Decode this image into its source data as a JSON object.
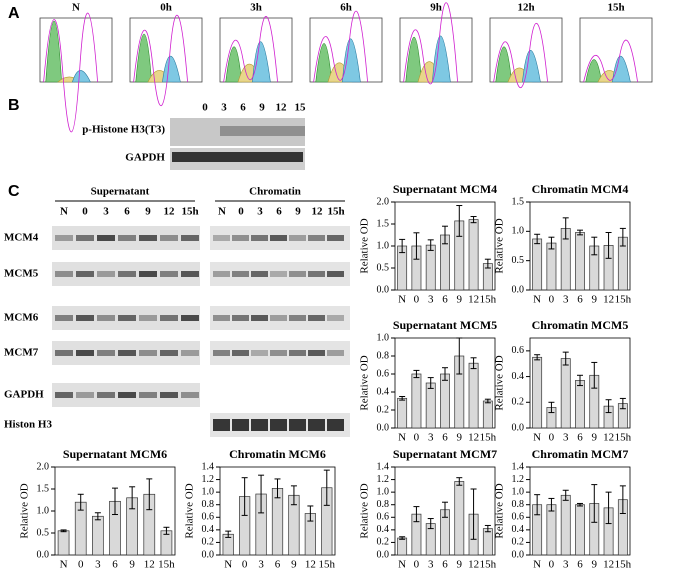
{
  "panel_a": {
    "label": "A",
    "times": [
      "N",
      "0h",
      "3h",
      "6h",
      "9h",
      "12h",
      "15h"
    ]
  },
  "panel_b": {
    "label": "B",
    "lanes": [
      "0",
      "3",
      "6",
      "9",
      "12",
      "15"
    ],
    "rows": [
      "p-Histone H3(T3)",
      "GAPDH"
    ]
  },
  "panel_c": {
    "label": "C",
    "groups": [
      "Supernatant",
      "Chromatin"
    ],
    "lanes": [
      "N",
      "0",
      "3",
      "6",
      "9",
      "12",
      "15h"
    ],
    "rows": [
      "MCM4",
      "MCM5",
      "MCM6",
      "MCM7",
      "GAPDH",
      "Histon H3"
    ]
  },
  "chart_data": [
    {
      "type": "bar",
      "title": "Supernatant MCM4",
      "ylabel": "Relative OD",
      "categories": [
        "N",
        "0",
        "3",
        "6",
        "9",
        "12",
        "15h"
      ],
      "values": [
        1.0,
        1.0,
        1.02,
        1.25,
        1.57,
        1.6,
        0.6
      ],
      "errors": [
        0.15,
        0.3,
        0.12,
        0.2,
        0.35,
        0.07,
        0.1
      ],
      "color": "#d9d9d9",
      "ylim": [
        0,
        2.0
      ],
      "yticks": [
        {
          "value": 0,
          "label": "0.0"
        },
        0.5,
        {
          "value": 1,
          "label": "1.0"
        },
        1.5,
        {
          "value": 2,
          "label": "2.0"
        }
      ]
    },
    {
      "type": "bar",
      "title": "Chromatin MCM4",
      "ylabel": "Relative OD",
      "categories": [
        "N",
        "0",
        "3",
        "6",
        "9",
        "12",
        "15h"
      ],
      "values": [
        0.87,
        0.8,
        1.05,
        0.98,
        0.75,
        0.76,
        0.9
      ],
      "errors": [
        0.08,
        0.1,
        0.18,
        0.04,
        0.15,
        0.22,
        0.15
      ],
      "color": "#d9d9d9",
      "ylim": [
        0,
        1.5
      ],
      "yticks": [
        {
          "value": 0,
          "label": "0.0"
        },
        0.5,
        {
          "value": 1,
          "label": "1.0"
        },
        1.5
      ]
    },
    {
      "type": "bar",
      "title": "Supernatant MCM5",
      "ylabel": "Relative OD",
      "categories": [
        "N",
        "0",
        "3",
        "6",
        "9",
        "12",
        "15h"
      ],
      "values": [
        0.33,
        0.6,
        0.5,
        0.6,
        0.8,
        0.72,
        0.3
      ],
      "errors": [
        0.02,
        0.04,
        0.06,
        0.07,
        0.2,
        0.06,
        0.02
      ],
      "color": "#d9d9d9",
      "ylim": [
        0,
        1.0
      ],
      "yticks": [
        {
          "value": 0,
          "label": "0.0"
        },
        0.2,
        0.4,
        0.6,
        0.8,
        {
          "value": 1,
          "label": "1.0"
        }
      ]
    },
    {
      "type": "bar",
      "title": "Chromatin MCM5",
      "ylabel": "Relative OD",
      "categories": [
        "N",
        "0",
        "3",
        "6",
        "9",
        "12",
        "15h"
      ],
      "values": [
        0.55,
        0.16,
        0.54,
        0.37,
        0.41,
        0.17,
        0.19
      ],
      "errors": [
        0.02,
        0.04,
        0.05,
        0.04,
        0.1,
        0.05,
        0.04
      ],
      "color": "#d9d9d9",
      "ylim": [
        0,
        0.7
      ],
      "yticks": [
        {
          "value": 0,
          "label": "0.0"
        },
        0.2,
        0.4,
        0.6
      ]
    },
    {
      "type": "bar",
      "title": "Supernatant MCM6",
      "ylabel": "Relative OD",
      "categories": [
        "N",
        "0",
        "3",
        "6",
        "9",
        "12",
        "15h"
      ],
      "values": [
        0.55,
        1.2,
        0.88,
        1.22,
        1.3,
        1.38,
        0.55
      ],
      "errors": [
        0.02,
        0.18,
        0.08,
        0.3,
        0.25,
        0.35,
        0.08
      ],
      "color": "#d9d9d9",
      "ylim": [
        0,
        2.0
      ],
      "yticks": [
        {
          "value": 0,
          "label": "0.0"
        },
        0.5,
        {
          "value": 1,
          "label": "1.0"
        },
        1.5,
        {
          "value": 2,
          "label": "2.0"
        }
      ]
    },
    {
      "type": "bar",
      "title": "Chromatin MCM6",
      "ylabel": "Relative OD",
      "categories": [
        "N",
        "0",
        "3",
        "6",
        "9",
        "12",
        "15h"
      ],
      "values": [
        0.33,
        0.93,
        0.97,
        1.06,
        0.95,
        0.66,
        1.07
      ],
      "errors": [
        0.05,
        0.3,
        0.3,
        0.15,
        0.15,
        0.12,
        0.28
      ],
      "color": "#d9d9d9",
      "ylim": [
        0,
        1.4
      ],
      "yticks": [
        {
          "value": 0,
          "label": "0.0"
        },
        0.2,
        0.4,
        0.6,
        0.8,
        {
          "value": 1,
          "label": "1.0"
        },
        1.2,
        1.4
      ]
    },
    {
      "type": "bar",
      "title": "Supernatant MCM7",
      "ylabel": "Relative OD",
      "categories": [
        "N",
        "0",
        "3",
        "6",
        "9",
        "12",
        "15h"
      ],
      "values": [
        0.27,
        0.65,
        0.5,
        0.72,
        1.17,
        0.65,
        0.42
      ],
      "errors": [
        0.02,
        0.12,
        0.08,
        0.12,
        0.06,
        0.4,
        0.05
      ],
      "color": "#d9d9d9",
      "ylim": [
        0,
        1.4
      ],
      "yticks": [
        {
          "value": 0,
          "label": "0.0"
        },
        0.2,
        0.4,
        0.6,
        0.8,
        {
          "value": 1,
          "label": "1.0"
        },
        1.2,
        1.4
      ]
    },
    {
      "type": "bar",
      "title": "Chromatin MCM7",
      "ylabel": "Relative OD",
      "categories": [
        "N",
        "0",
        "3",
        "6",
        "9",
        "12",
        "15h"
      ],
      "values": [
        0.8,
        0.8,
        0.95,
        0.8,
        0.82,
        0.75,
        0.88
      ],
      "errors": [
        0.16,
        0.1,
        0.08,
        0.02,
        0.3,
        0.25,
        0.22
      ],
      "color": "#d9d9d9",
      "ylim": [
        0,
        1.4
      ],
      "yticks": [
        {
          "value": 0,
          "label": "0.0"
        },
        0.2,
        0.4,
        0.6,
        0.8,
        {
          "value": 1,
          "label": "1.0"
        },
        1.2,
        1.4
      ]
    }
  ]
}
